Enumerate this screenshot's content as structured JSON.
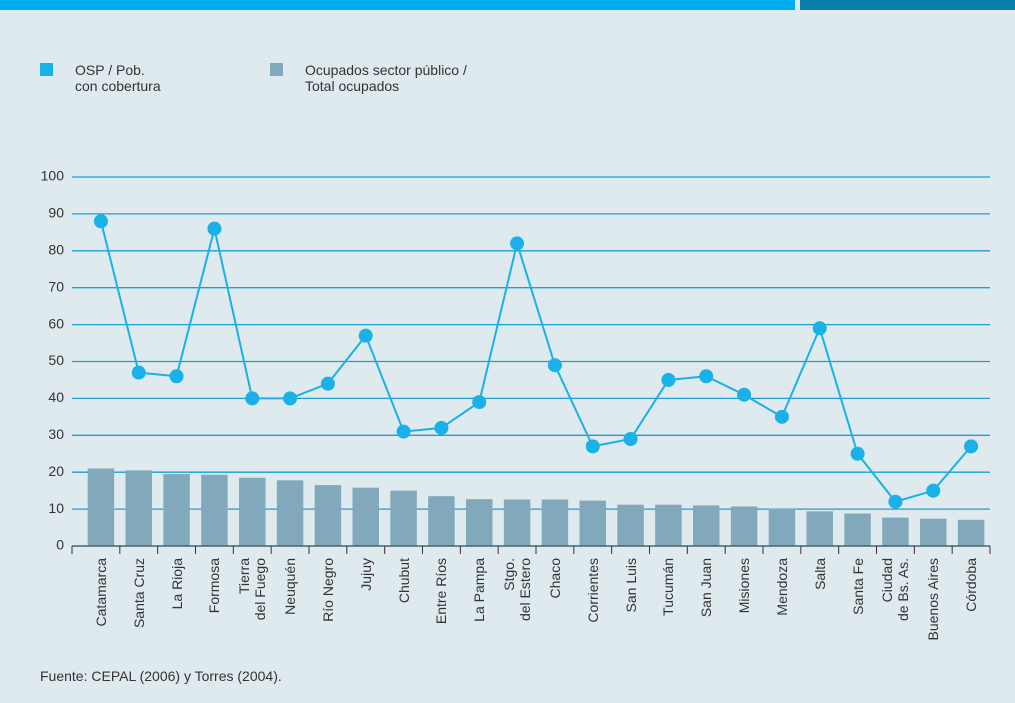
{
  "chart_data": {
    "type": "bar-line",
    "categories": [
      "Catamarca",
      "Santa Cruz",
      "La Rioja",
      "Formosa",
      "Tierra\ndel Fuego",
      "Neuquén",
      "Río Negro",
      "Jujuy",
      "Chubut",
      "Entre Ríos",
      "La Pampa",
      "Stgo.\ndel Estero",
      "Chaco",
      "Corrientes",
      "San Luis",
      "Tucumán",
      "San Juan",
      "Misiones",
      "Mendoza",
      "Salta",
      "Santa Fe",
      "Ciudad\nde Bs. As.",
      "Buenos Aires",
      "Córdoba"
    ],
    "series": [
      {
        "name": "OSP / Pob.\ncon cobertura",
        "type": "line",
        "color": "#1ab0e8",
        "values": [
          88,
          47,
          46,
          86,
          40,
          40,
          44,
          57,
          31,
          32,
          39,
          82,
          49,
          27,
          29,
          45,
          46,
          41,
          35,
          59,
          25,
          12,
          15,
          27
        ]
      },
      {
        "name": "Ocupados sector público /\nTotal ocupados",
        "type": "bar",
        "color": "#82a9bb",
        "values": [
          21,
          20.5,
          19.5,
          19.3,
          18.5,
          17.8,
          16.5,
          15.8,
          15,
          13.5,
          12.7,
          12.6,
          12.6,
          12.3,
          11.2,
          11.2,
          11,
          10.7,
          10.1,
          9.4,
          8.8,
          7.7,
          7.4,
          7.1
        ]
      }
    ],
    "ylim": [
      0,
      100
    ],
    "yticks": [
      0,
      10,
      20,
      30,
      40,
      50,
      60,
      70,
      80,
      90,
      100
    ],
    "grid": true,
    "source": "Fuente: CEPAL (2006) y Torres (2004)."
  }
}
